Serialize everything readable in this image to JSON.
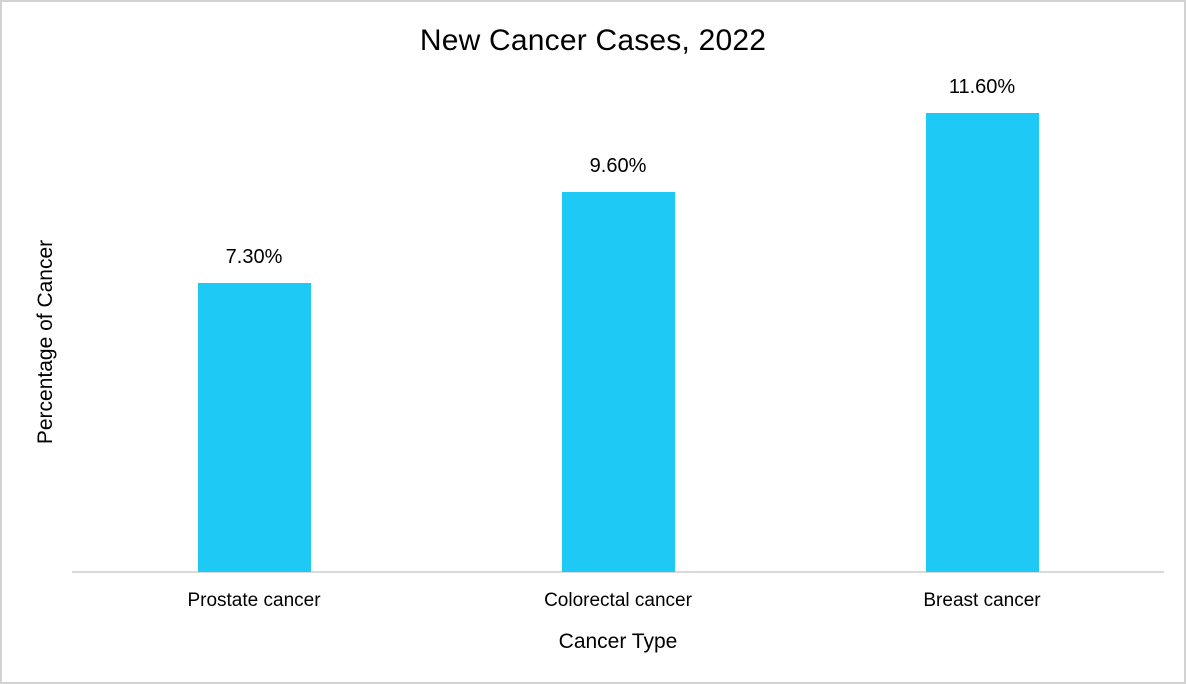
{
  "window": {
    "background_color": "#ffffff",
    "border_color": "#d2d2d2"
  },
  "chart_data": {
    "type": "bar",
    "title": "New Cancer Cases, 2022",
    "xlabel": "Cancer Type",
    "ylabel": "Percentage of Cancer",
    "categories": [
      "Prostate cancer",
      "Colorectal cancer",
      "Breast cancer"
    ],
    "values": [
      7.3,
      9.6,
      11.6
    ],
    "value_labels": [
      "7.30%",
      "9.60%",
      "11.60%"
    ],
    "ylim": [
      0,
      12
    ],
    "bar_color": "#1ec9f5",
    "axis_line_color": "#d9d9d9",
    "grid": false,
    "legend": false,
    "y_ticks_visible": false,
    "label_position": "above-bar"
  }
}
